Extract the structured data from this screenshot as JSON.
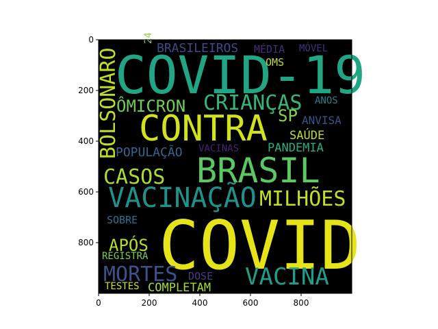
{
  "image": {
    "type": "word-cloud",
    "background": "#000000",
    "x_axis": {
      "ticks": [
        "0",
        "200",
        "400",
        "600",
        "800"
      ]
    },
    "y_axis": {
      "ticks": [
        "0",
        "200",
        "400",
        "600",
        "800"
      ]
    },
    "colormap": "viridis"
  },
  "words": [
    {
      "text": "COVID",
      "color": "#e6e419"
    },
    {
      "text": "COVID-19",
      "color": "#21a685"
    },
    {
      "text": "CONTRA",
      "color": "#d2e21b"
    },
    {
      "text": "BRASIL",
      "color": "#5cc863"
    },
    {
      "text": "VACINAÇÃO",
      "color": "#21918c"
    },
    {
      "text": "CRIANÇAS",
      "color": "#35b779"
    },
    {
      "text": "BOLSONARO",
      "color": "#bddf26"
    },
    {
      "text": "CASOS",
      "color": "#addc30"
    },
    {
      "text": "ÔMICRON",
      "color": "#6ece58"
    },
    {
      "text": "MILHÕES",
      "color": "#c2df23"
    },
    {
      "text": "VACINA",
      "color": "#1f9e89"
    },
    {
      "text": "MORTES",
      "color": "#3b528b"
    },
    {
      "text": "APÓS",
      "color": "#b5de2b"
    },
    {
      "text": "SP",
      "color": "#84d44b"
    },
    {
      "text": "BRASILEIROS",
      "color": "#3e4a89"
    },
    {
      "text": "POPULAÇÃO",
      "color": "#31688e"
    },
    {
      "text": "PANDEMIA",
      "color": "#29af7f"
    },
    {
      "text": "COMPLETAM",
      "color": "#a5db36"
    },
    {
      "text": "SAÚDE",
      "color": "#b8de29"
    },
    {
      "text": "OMS",
      "color": "#bddf26"
    },
    {
      "text": "MÉDIA",
      "color": "#472d7b"
    },
    {
      "text": "MÓVEL",
      "color": "#46307e"
    },
    {
      "text": "ANOS",
      "color": "#26828e"
    },
    {
      "text": "ANVISA",
      "color": "#39568c"
    },
    {
      "text": "VACINAS",
      "color": "#482475"
    },
    {
      "text": "SOBRE",
      "color": "#2c728e"
    },
    {
      "text": "REGISTRA",
      "color": "#7ad151"
    },
    {
      "text": "DOSE",
      "color": "#433e85"
    },
    {
      "text": "TESTES",
      "color": "#d0e11c"
    },
    {
      "text": "24",
      "color": "#90d743"
    }
  ]
}
